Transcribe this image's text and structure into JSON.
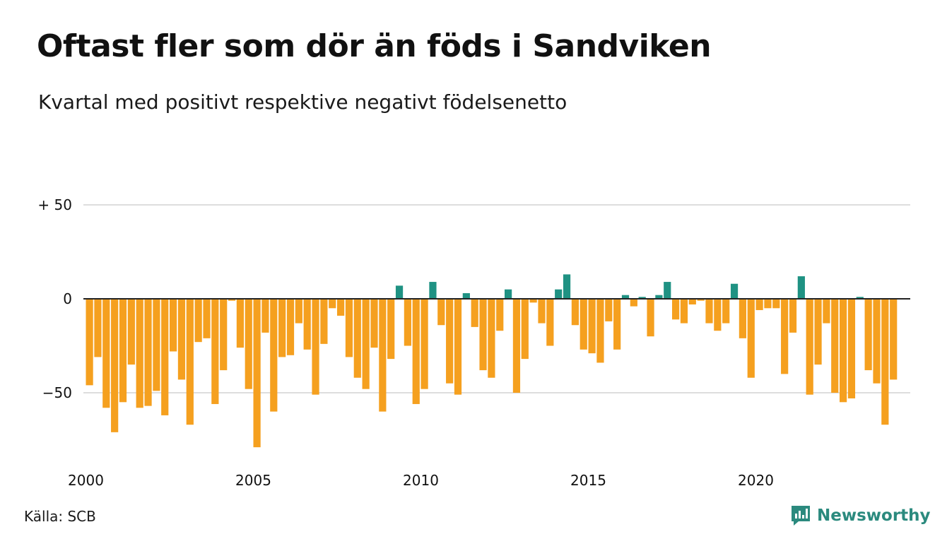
{
  "title": "Oftast fler som dör än föds i Sandviken",
  "subtitle": "Kvartal med positivt respektive negativt födelsenetto",
  "source": "Källa: SCB",
  "brand": {
    "name": "Newsworthy",
    "icon": "newsworthy-logo-icon"
  },
  "colors": {
    "negative": "#f5a01f",
    "positive": "#1f9283",
    "grid": "#dddddd",
    "zero": "#222222"
  },
  "chart_data": {
    "type": "bar",
    "x_ticks": [
      "2000",
      "2005",
      "2010",
      "2015",
      "2020"
    ],
    "y_ticks": [
      "+ 50",
      "0",
      "−50"
    ],
    "ylim": [
      -82,
      52
    ],
    "first_year": 2000,
    "periods_per_year": 4,
    "values": [
      -46,
      -31,
      -58,
      -71,
      -55,
      -35,
      -58,
      -57,
      -49,
      -62,
      -28,
      -43,
      -67,
      -23,
      -21,
      -56,
      -38,
      -1,
      -26,
      -48,
      -79,
      -18,
      -60,
      -31,
      -30,
      -13,
      -27,
      -51,
      -24,
      -5,
      -9,
      -31,
      -42,
      -48,
      -26,
      -60,
      -32,
      7,
      -25,
      -56,
      -48,
      9,
      -14,
      -45,
      -51,
      3,
      -15,
      -38,
      -42,
      -17,
      5,
      -50,
      -32,
      -2,
      -13,
      -25,
      5,
      13,
      -14,
      -27,
      -29,
      -34,
      -12,
      -27,
      2,
      -4,
      1,
      -20,
      2,
      9,
      -11,
      -13,
      -3,
      -1,
      -13,
      -17,
      -13,
      8,
      -21,
      -42,
      -6,
      -5,
      -5,
      -40,
      -18,
      12,
      -51,
      -35,
      -13,
      -50,
      -55,
      -53,
      1,
      -38,
      -45,
      -67,
      -43
    ]
  }
}
